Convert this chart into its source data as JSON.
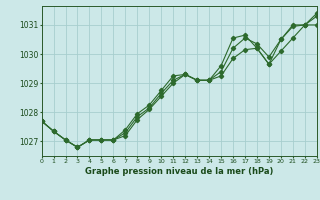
{
  "hours": [
    0,
    1,
    2,
    3,
    4,
    5,
    6,
    7,
    8,
    9,
    10,
    11,
    12,
    13,
    14,
    15,
    16,
    17,
    18,
    19,
    20,
    21,
    22,
    23
  ],
  "line1": [
    1027.7,
    1027.35,
    1027.05,
    1026.8,
    1027.05,
    1027.05,
    1027.05,
    1027.2,
    1027.75,
    1028.1,
    1028.55,
    1029.0,
    1029.3,
    1029.1,
    1029.1,
    1029.25,
    1029.85,
    1030.15,
    1030.2,
    1029.65,
    1030.1,
    1030.55,
    1031.0,
    1031.0
  ],
  "line2": [
    1027.7,
    1027.35,
    1027.05,
    1026.8,
    1027.05,
    1027.05,
    1027.05,
    1027.3,
    1027.85,
    1028.15,
    1028.65,
    1029.1,
    1029.3,
    1029.1,
    1029.1,
    1029.4,
    1030.2,
    1030.55,
    1030.35,
    1029.9,
    1030.5,
    1030.95,
    1031.0,
    1031.3
  ],
  "line3": [
    1027.7,
    1027.35,
    1027.05,
    1026.8,
    1027.05,
    1027.05,
    1027.05,
    1027.4,
    1027.95,
    1028.25,
    1028.75,
    1029.25,
    1029.3,
    1029.1,
    1029.1,
    1029.6,
    1030.55,
    1030.65,
    1030.2,
    1029.65,
    1030.5,
    1031.0,
    1031.0,
    1031.4
  ],
  "line_color": "#2d6a2d",
  "bg_color": "#cce8e8",
  "grid_color": "#a8cece",
  "xlabel": "Graphe pression niveau de la mer (hPa)",
  "ylabel_ticks": [
    1027,
    1028,
    1029,
    1030,
    1031
  ],
  "ylim": [
    1026.5,
    1031.65
  ],
  "xlim": [
    0,
    23
  ]
}
